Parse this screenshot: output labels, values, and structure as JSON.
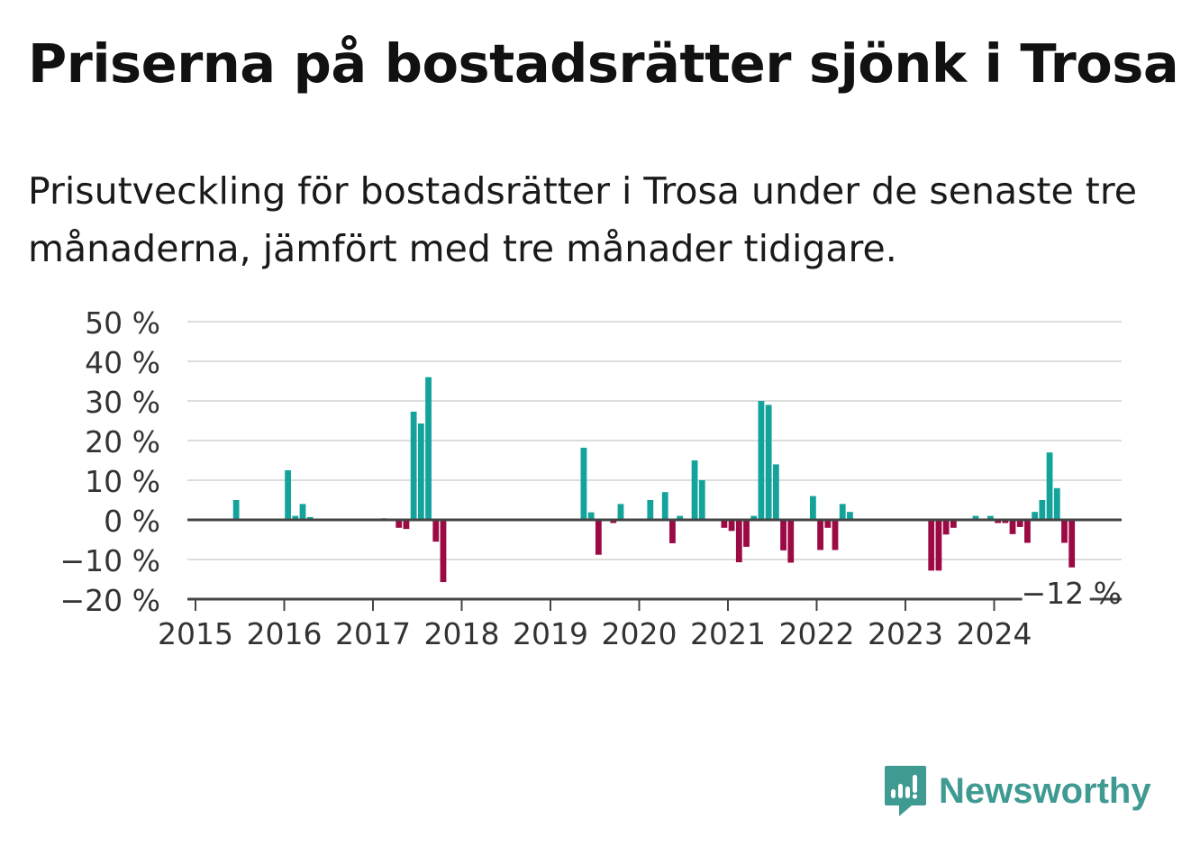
{
  "title": "Priserna på bostadsrätter sjönk i Trosa",
  "subtitle": "Prisutveckling för bostadsrätter i Trosa under de senaste tre månaderna, jämfört med tre månader tidigare.",
  "brand": "Newsworthy",
  "colors": {
    "positive": "#13a39a",
    "negative": "#9b0a45",
    "grid": "#dddddd",
    "zero_line": "#444444"
  },
  "chart_data": {
    "type": "bar",
    "title": "Priserna på bostadsrätter sjönk i Trosa",
    "subtitle": "Prisutveckling för bostadsrätter i Trosa under de senaste tre månaderna, jämfört med tre månader tidigare.",
    "ylim": [
      -20,
      50
    ],
    "yticks": [
      {
        "value": 50,
        "label": "50 %"
      },
      {
        "value": 40,
        "label": "40 %"
      },
      {
        "value": 30,
        "label": "30 %"
      },
      {
        "value": 20,
        "label": "20 %"
      },
      {
        "value": 10,
        "label": "10 %"
      },
      {
        "value": 0,
        "label": "0 %"
      },
      {
        "value": -10,
        "label": "−10 %"
      },
      {
        "value": -20,
        "label": "−20 %"
      }
    ],
    "xticks": [
      "2015",
      "2016",
      "2017",
      "2018",
      "2019",
      "2020",
      "2021",
      "2022",
      "2023",
      "2024"
    ],
    "grid": true,
    "last_label": "−12 %",
    "series": [
      {
        "values": [
          {
            "x": "2015-06",
            "y": 5
          },
          {
            "x": "2016-01",
            "y": 12.5
          },
          {
            "x": "2016-02",
            "y": 1
          },
          {
            "x": "2016-03",
            "y": 4
          },
          {
            "x": "2016-04",
            "y": 0.7
          },
          {
            "x": "2017-02",
            "y": 0.4
          },
          {
            "x": "2017-04",
            "y": -2
          },
          {
            "x": "2017-05",
            "y": -2.3
          },
          {
            "x": "2017-06",
            "y": 27.3
          },
          {
            "x": "2017-07",
            "y": 24.3
          },
          {
            "x": "2017-08",
            "y": 36
          },
          {
            "x": "2017-09",
            "y": -5.5
          },
          {
            "x": "2017-10",
            "y": -15.7
          },
          {
            "x": "2019-05",
            "y": 18.2
          },
          {
            "x": "2019-06",
            "y": 1.9
          },
          {
            "x": "2019-07",
            "y": -8.8
          },
          {
            "x": "2019-09",
            "y": -0.8
          },
          {
            "x": "2019-10",
            "y": 4
          },
          {
            "x": "2020-02",
            "y": 5
          },
          {
            "x": "2020-04",
            "y": 7
          },
          {
            "x": "2020-05",
            "y": -5.9
          },
          {
            "x": "2020-06",
            "y": 1
          },
          {
            "x": "2020-08",
            "y": 15
          },
          {
            "x": "2020-09",
            "y": 10
          },
          {
            "x": "2020-12",
            "y": -2
          },
          {
            "x": "2021-01",
            "y": -2.8
          },
          {
            "x": "2021-02",
            "y": -10.7
          },
          {
            "x": "2021-03",
            "y": -6.8
          },
          {
            "x": "2021-04",
            "y": 1
          },
          {
            "x": "2021-05",
            "y": 30
          },
          {
            "x": "2021-06",
            "y": 29
          },
          {
            "x": "2021-07",
            "y": 14
          },
          {
            "x": "2021-08",
            "y": -7.7
          },
          {
            "x": "2021-09",
            "y": -10.8
          },
          {
            "x": "2021-12",
            "y": 6
          },
          {
            "x": "2022-01",
            "y": -7.6
          },
          {
            "x": "2022-02",
            "y": -2
          },
          {
            "x": "2022-03",
            "y": -7.6
          },
          {
            "x": "2022-04",
            "y": 4
          },
          {
            "x": "2022-05",
            "y": 2
          },
          {
            "x": "2023-04",
            "y": -12.8
          },
          {
            "x": "2023-05",
            "y": -12.8
          },
          {
            "x": "2023-06",
            "y": -3.7
          },
          {
            "x": "2023-07",
            "y": -2
          },
          {
            "x": "2023-10",
            "y": 1
          },
          {
            "x": "2023-12",
            "y": 1
          },
          {
            "x": "2024-01",
            "y": -0.8
          },
          {
            "x": "2024-02",
            "y": -0.8
          },
          {
            "x": "2024-03",
            "y": -3.6
          },
          {
            "x": "2024-04",
            "y": -1.8
          },
          {
            "x": "2024-05",
            "y": -5.8
          },
          {
            "x": "2024-06",
            "y": 2
          },
          {
            "x": "2024-07",
            "y": 5
          },
          {
            "x": "2024-08",
            "y": 17
          },
          {
            "x": "2024-09",
            "y": 8
          },
          {
            "x": "2024-10",
            "y": -5.8
          },
          {
            "x": "2024-11",
            "y": -12
          }
        ]
      }
    ]
  }
}
